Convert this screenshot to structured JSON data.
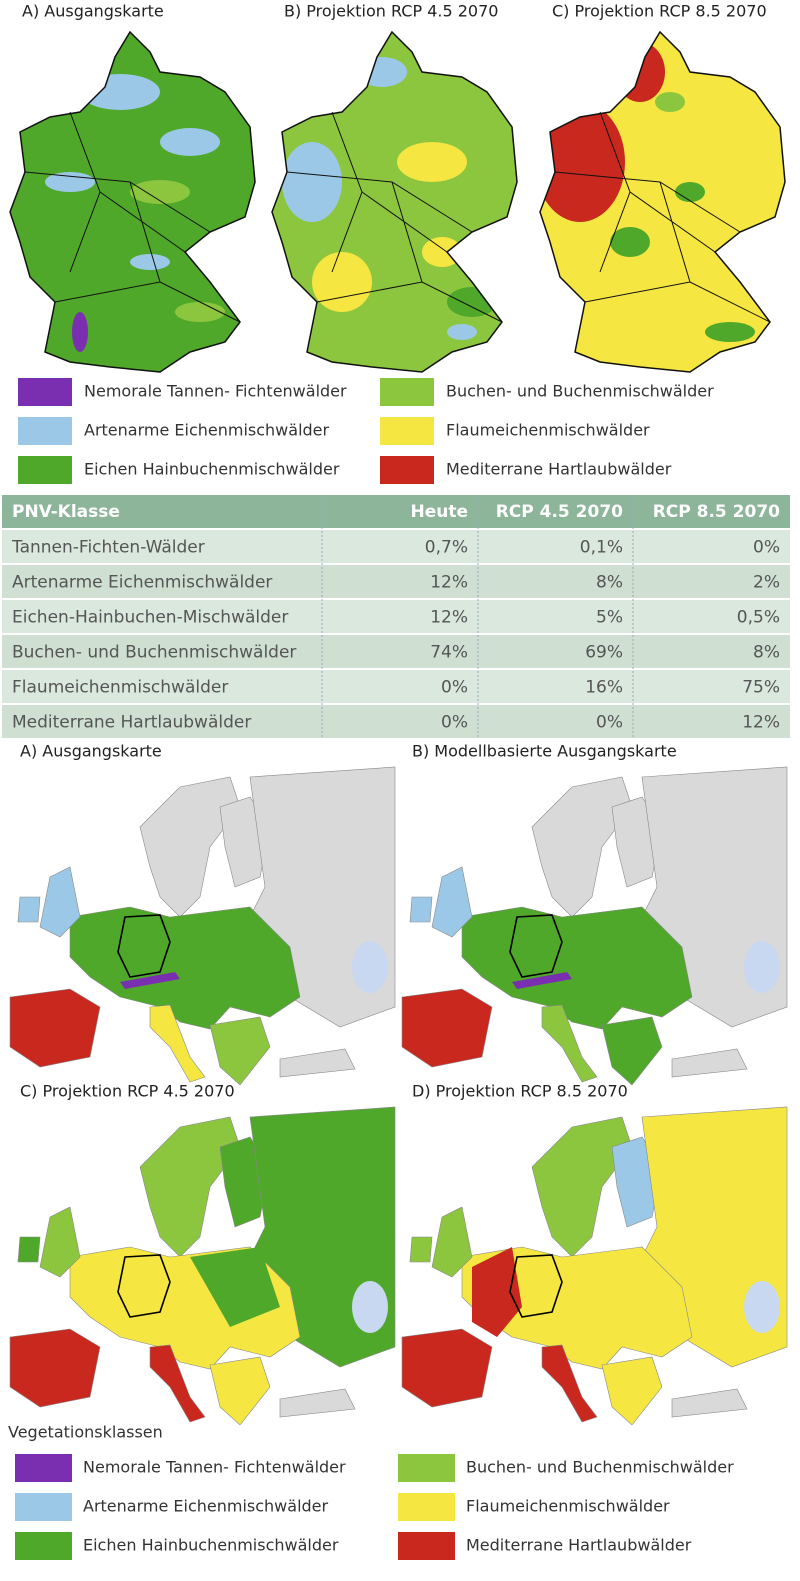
{
  "top_maps": {
    "titles": [
      "A) Ausgangskarte",
      "B) Projektion RCP 4.5 2070",
      "C) Projektion RCP 8.5 2070"
    ]
  },
  "legend_top": {
    "items": [
      "Nemorale Tannen- Fichtenwälder",
      "Artenarme Eichenmischwälder",
      "Eichen Hainbuchenmischwälder",
      "Buchen- und Buchenmischwälder",
      "Flaumeichenmischwälder",
      "Mediterrane Hartlaubwälder"
    ]
  },
  "table": {
    "header": [
      "PNV-Klasse",
      "Heute",
      "RCP 4.5 2070",
      "RCP 8.5 2070"
    ],
    "rows": [
      [
        "Tannen-Fichten-Wälder",
        "0,7%",
        "0,1%",
        "0%"
      ],
      [
        "Artenarme Eichenmischwälder",
        "12%",
        "8%",
        "2%"
      ],
      [
        "Eichen-Hainbuchen-Mischwälder",
        "12%",
        "5%",
        "0,5%"
      ],
      [
        "Buchen- und Buchenmischwälder",
        "74%",
        "69%",
        "8%"
      ],
      [
        "Flaumeichenmischwälder",
        "0%",
        "16%",
        "75%"
      ],
      [
        "Mediterrane Hartlaubwälder",
        "0%",
        "0%",
        "12%"
      ]
    ]
  },
  "europe_maps": {
    "titles": [
      "A) Ausgangskarte",
      "B) Modellbasierte Ausgangskarte",
      "C) Projektion RCP 4.5 2070",
      "D) Projektion RCP 8.5 2070"
    ]
  },
  "legend_bottom": {
    "title": "Vegetationsklassen",
    "items": [
      "Nemorale Tannen- Fichtenwälder",
      "Artenarme Eichenmischwälder",
      "Eichen Hainbuchenmischwälder",
      "Buchen- und Buchenmischwälder",
      "Flaumeichenmischwälder",
      "Mediterrane Hartlaubwälder"
    ]
  }
}
